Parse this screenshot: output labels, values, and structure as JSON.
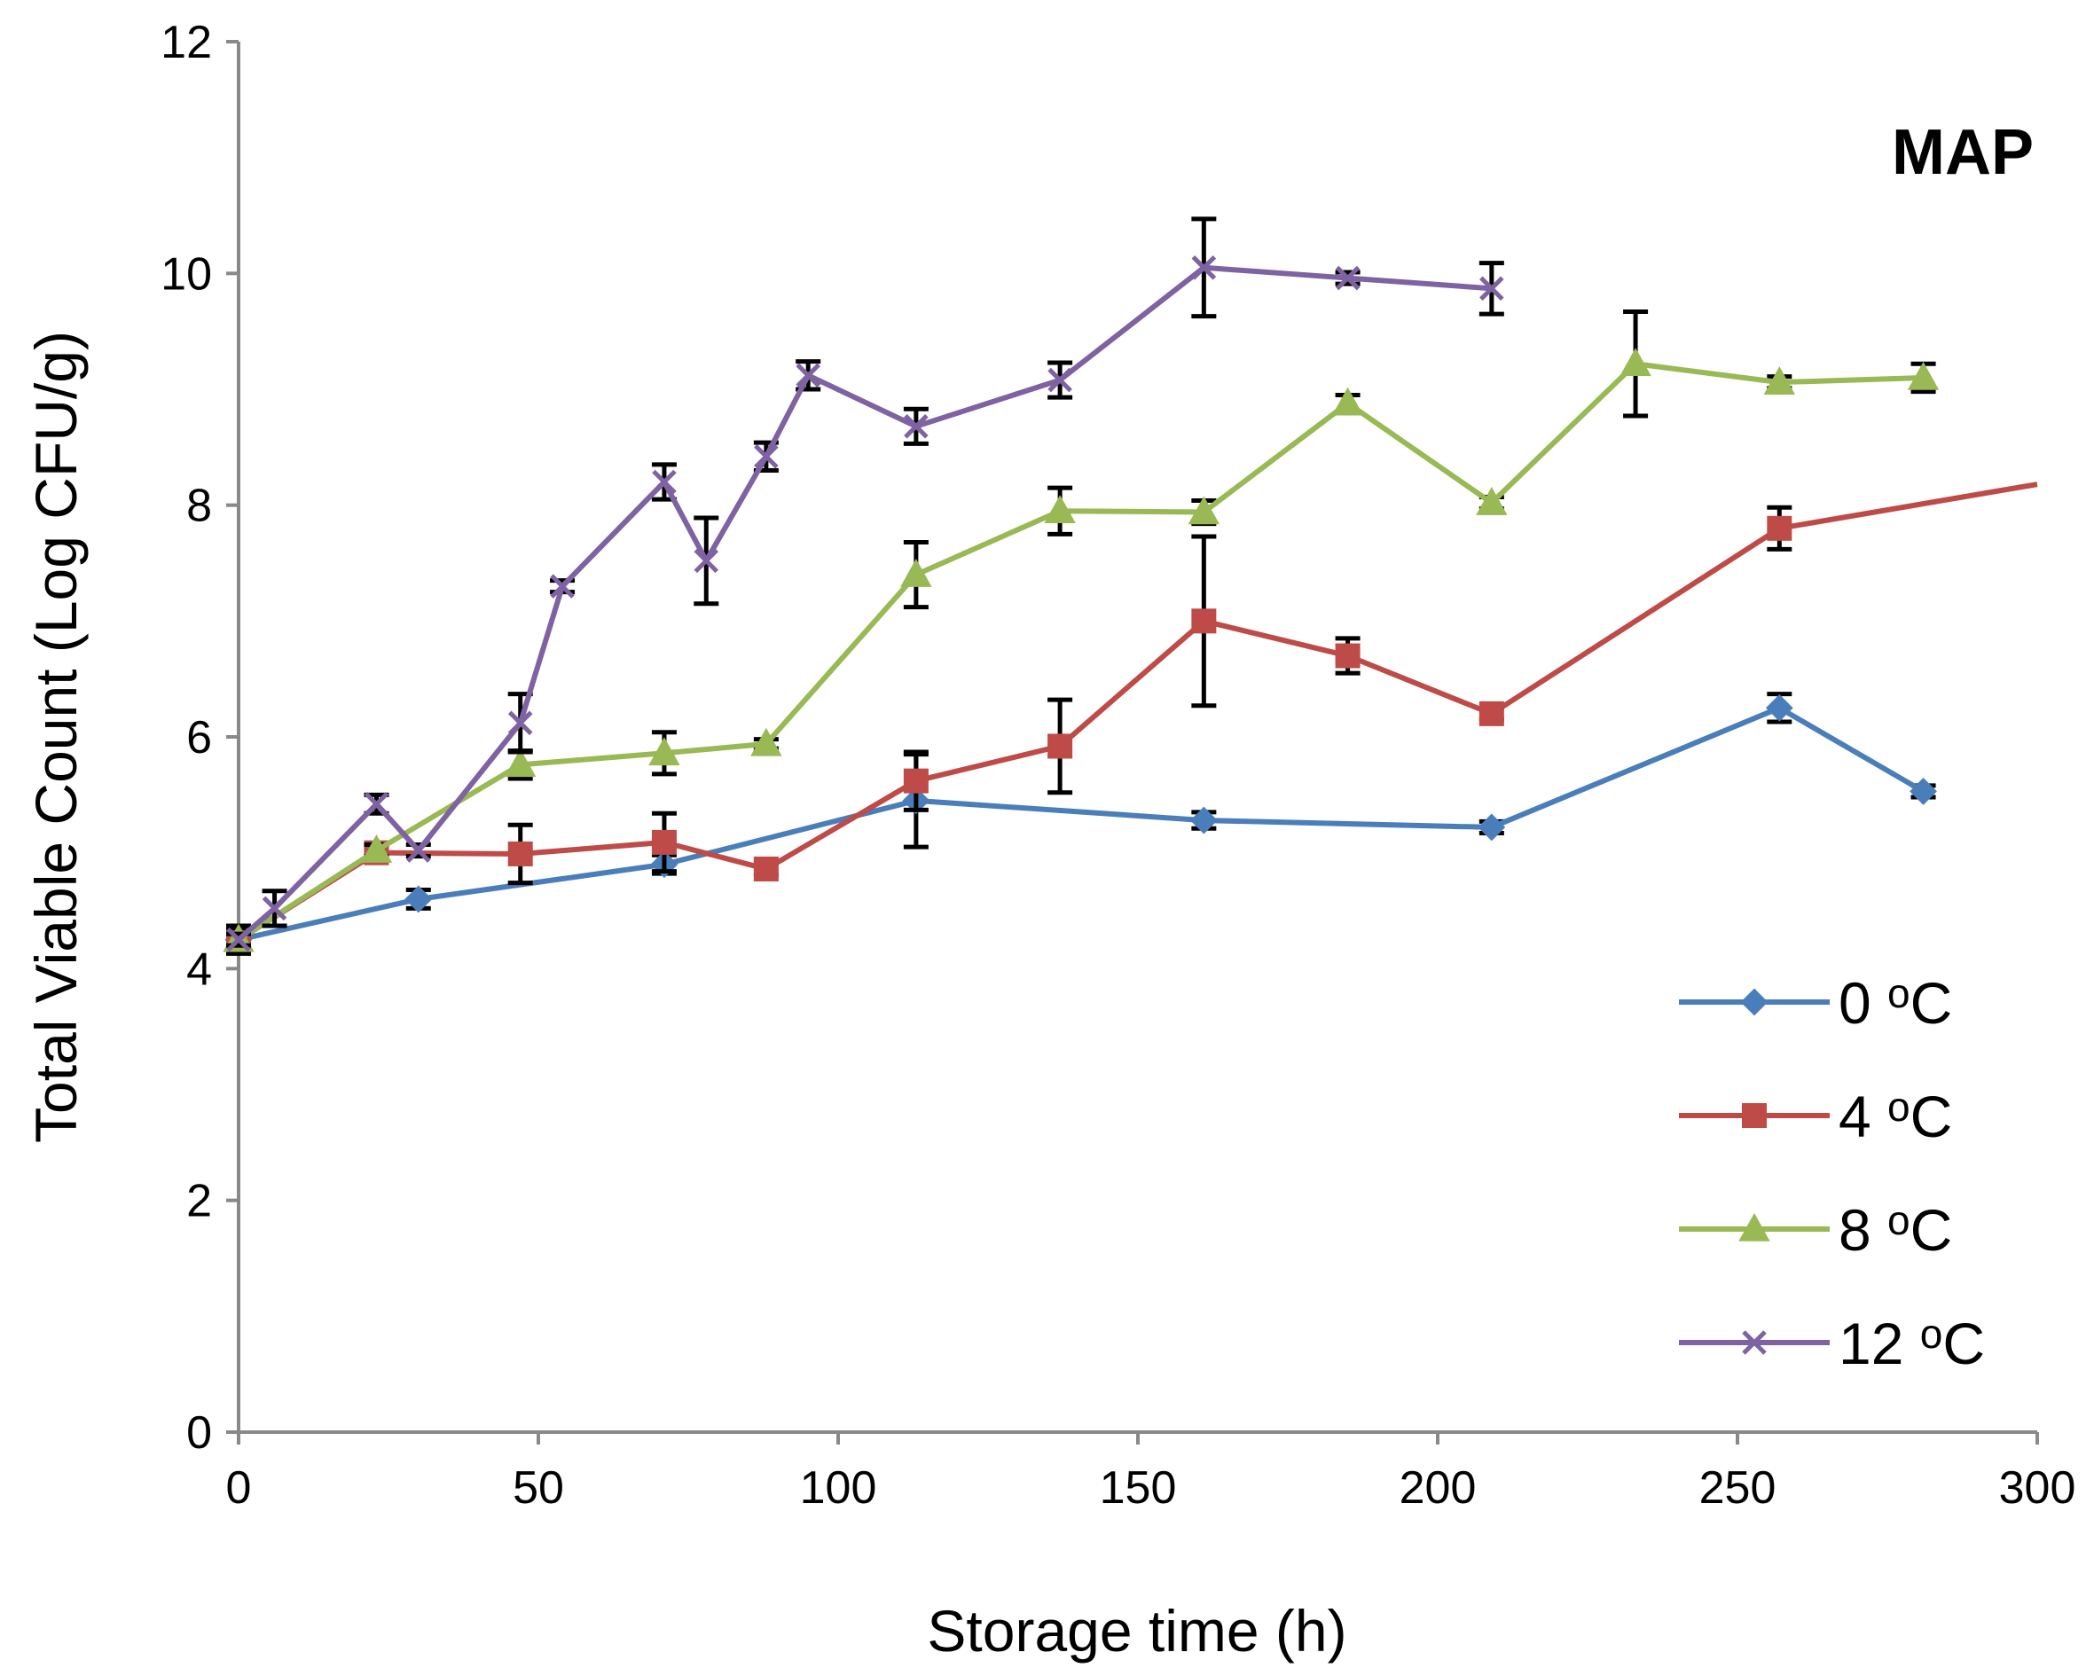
{
  "chart_data": {
    "type": "line",
    "annotation": "MAP",
    "xlabel": "Storage time (h)",
    "ylabel": "Total Viable Count (Log CFU/g)",
    "xlim": [
      0,
      300
    ],
    "ylim": [
      0,
      12
    ],
    "xticks": [
      "0",
      "50",
      "100",
      "150",
      "200",
      "250",
      "300"
    ],
    "yticks": [
      "0",
      "2",
      "4",
      "6",
      "8",
      "10",
      "12"
    ],
    "grid": false,
    "legend_position": "bottom-right",
    "series": [
      {
        "name": "0",
        "unit": "oC",
        "label_num": "0 ",
        "color": "#4a7ebb",
        "marker": "diamond",
        "x": [
          0,
          30,
          71,
          113,
          161,
          209,
          257,
          281
        ],
        "y": [
          4.25,
          4.6,
          4.9,
          5.45,
          5.28,
          5.22,
          6.25,
          5.53
        ],
        "err": [
          0.12,
          0.08,
          0.08,
          0.4,
          0.07,
          0.05,
          0.12,
          0.05
        ]
      },
      {
        "name": "4",
        "unit": "oC",
        "label_num": "4 ",
        "color": "#be4b48",
        "marker": "square",
        "x": [
          0,
          23,
          47,
          71,
          88,
          113,
          137,
          161,
          185,
          209,
          257,
          300
        ],
        "y": [
          4.25,
          5.0,
          4.99,
          5.09,
          4.86,
          5.62,
          5.92,
          7.0,
          6.7,
          6.2,
          7.8,
          8.18
        ],
        "err": [
          0.1,
          0.05,
          0.25,
          0.25,
          0.05,
          0.25,
          0.4,
          0.73,
          0.15,
          0.05,
          0.18,
          null
        ]
      },
      {
        "name": "8",
        "unit": "oC",
        "label_num": "8 ",
        "color": "#98b954",
        "marker": "triangle",
        "x": [
          0,
          23,
          47,
          71,
          88,
          113,
          137,
          161,
          185,
          209,
          233,
          257,
          281
        ],
        "y": [
          4.25,
          5.02,
          5.76,
          5.86,
          5.94,
          7.4,
          7.95,
          7.94,
          8.88,
          8.02,
          9.22,
          9.06,
          9.1
        ],
        "err": [
          0.1,
          0.05,
          0.12,
          0.18,
          0.04,
          0.28,
          0.2,
          0.1,
          0.07,
          0.05,
          0.45,
          0.05,
          0.12
        ]
      },
      {
        "name": "12",
        "unit": "oC",
        "label_num": "12 ",
        "color": "#7e62a1",
        "marker": "x",
        "x": [
          0,
          6,
          23,
          30,
          47,
          54,
          71,
          78,
          88,
          95,
          113,
          137,
          161,
          185,
          209
        ],
        "y": [
          4.25,
          4.52,
          5.42,
          5.02,
          6.12,
          7.3,
          8.2,
          7.52,
          8.42,
          9.12,
          8.68,
          9.08,
          10.05,
          9.96,
          9.87
        ],
        "err": [
          0.05,
          0.15,
          0.08,
          0.05,
          0.25,
          0.05,
          0.15,
          0.37,
          0.12,
          0.12,
          0.15,
          0.15,
          0.42,
          0.05,
          0.22
        ]
      }
    ]
  }
}
